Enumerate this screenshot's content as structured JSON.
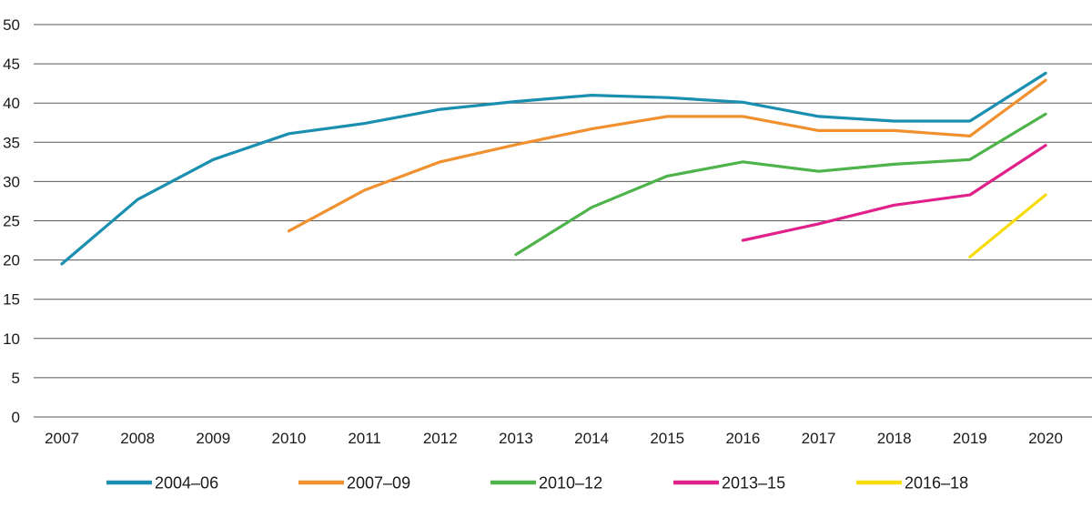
{
  "chart_data": {
    "type": "line",
    "x": [
      2007,
      2008,
      2009,
      2010,
      2011,
      2012,
      2013,
      2014,
      2015,
      2016,
      2017,
      2018,
      2019,
      2020
    ],
    "x_tick_labels": [
      "2007",
      "2008",
      "2009",
      "2010",
      "2011",
      "2012",
      "2013",
      "2014",
      "2015",
      "2016",
      "2017",
      "2018",
      "2019",
      "2020"
    ],
    "y_ticks": [
      0,
      5,
      10,
      15,
      20,
      25,
      30,
      35,
      40,
      45,
      50
    ],
    "y_tick_labels": [
      "0",
      "5",
      "10",
      "15",
      "20",
      "25",
      "30",
      "35",
      "40",
      "45",
      "50"
    ],
    "ylim": [
      0,
      50
    ],
    "grid": "horizontal",
    "legend_position": "bottom",
    "series": [
      {
        "name": "2004–06",
        "color": "#1a8fb0",
        "values": [
          19.5,
          27.7,
          32.8,
          36.1,
          37.4,
          39.2,
          40.2,
          41.0,
          40.7,
          40.1,
          38.3,
          37.7,
          37.7,
          43.8
        ]
      },
      {
        "name": "2007–09",
        "color": "#f0902e",
        "values": [
          null,
          null,
          null,
          23.7,
          28.9,
          32.5,
          34.7,
          36.7,
          38.3,
          38.3,
          36.5,
          36.5,
          35.8,
          42.9
        ]
      },
      {
        "name": "2010–12",
        "color": "#4db34a",
        "values": [
          null,
          null,
          null,
          null,
          null,
          null,
          20.7,
          26.7,
          30.7,
          32.5,
          31.3,
          32.2,
          32.8,
          38.6
        ]
      },
      {
        "name": "2013–15",
        "color": "#e0218a",
        "values": [
          null,
          null,
          null,
          null,
          null,
          null,
          null,
          null,
          null,
          22.5,
          24.6,
          27.0,
          28.3,
          34.6
        ]
      },
      {
        "name": "2016–18",
        "color": "#f7dc0c",
        "values": [
          null,
          null,
          null,
          null,
          null,
          null,
          null,
          null,
          null,
          null,
          null,
          null,
          20.4,
          28.3
        ]
      }
    ]
  }
}
